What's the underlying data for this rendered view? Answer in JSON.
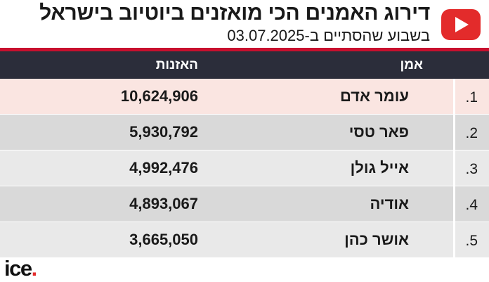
{
  "header": {
    "title": "דירוג האמנים הכי מואזנים ביוטיוב בישראל",
    "subtitle": "בשבוע שהסתיים ב-03.07.2025",
    "icon": "youtube-play-icon"
  },
  "table": {
    "columns": {
      "artist": "אמן",
      "listens": "האזנות"
    },
    "rows": [
      {
        "rank": "1.",
        "artist": "עומר אדם",
        "listens": "10,624,906",
        "bg": "#fae5e1"
      },
      {
        "rank": "2.",
        "artist": "פאר טסי",
        "listens": "5,930,792",
        "bg": "#d9d9d9"
      },
      {
        "rank": "3.",
        "artist": "אייל גולן",
        "listens": "4,992,476",
        "bg": "#e9e9e9"
      },
      {
        "rank": "4.",
        "artist": "אודיה",
        "listens": "4,893,067",
        "bg": "#d9d9d9"
      },
      {
        "rank": "5.",
        "artist": "אושר כהן",
        "listens": "3,665,050",
        "bg": "#e9e9e9"
      }
    ]
  },
  "footer": {
    "logo_text": "ice",
    "logo_dot": "."
  },
  "colors": {
    "accent": "#c8102e",
    "header_bg": "#2b2d3a",
    "youtube_red": "#e32b2b"
  }
}
